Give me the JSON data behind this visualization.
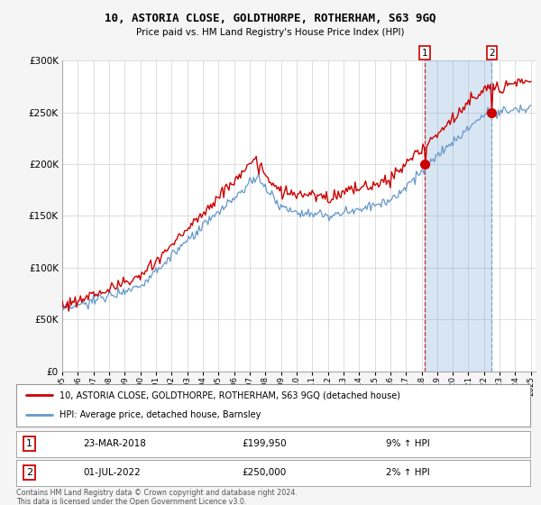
{
  "title": "10, ASTORIA CLOSE, GOLDTHORPE, ROTHERHAM, S63 9GQ",
  "subtitle": "Price paid vs. HM Land Registry's House Price Index (HPI)",
  "ylim": [
    0,
    300000
  ],
  "yticks": [
    0,
    50000,
    100000,
    150000,
    200000,
    250000,
    300000
  ],
  "ytick_labels": [
    "£0",
    "£50K",
    "£100K",
    "£150K",
    "£200K",
    "£250K",
    "£300K"
  ],
  "hpi_color": "#6699cc",
  "price_color": "#cc0000",
  "fill_color": "#dce9f5",
  "purchase1_year": 2018.21,
  "purchase1_price": 199950,
  "purchase1_date": "23-MAR-2018",
  "purchase1_hpi": "9% ↑ HPI",
  "purchase2_year": 2022.5,
  "purchase2_price": 250000,
  "purchase2_date": "01-JUL-2022",
  "purchase2_hpi": "2% ↑ HPI",
  "legend_label1": "10, ASTORIA CLOSE, GOLDTHORPE, ROTHERHAM, S63 9GQ (detached house)",
  "legend_label2": "HPI: Average price, detached house, Barnsley",
  "footer": "Contains HM Land Registry data © Crown copyright and database right 2024.\nThis data is licensed under the Open Government Licence v3.0.",
  "bg_color": "#f5f5f5"
}
